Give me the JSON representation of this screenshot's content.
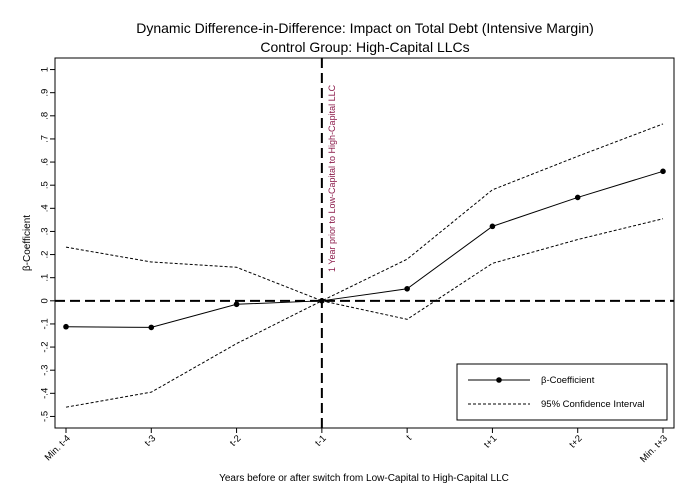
{
  "chart_data": {
    "type": "line",
    "title": "Dynamic Difference-in-Difference: Impact on Total Debt (Intensive Margin)",
    "subtitle": "Control Group: High-Capital LLCs",
    "xlabel": "Years before or after switch from Low-Capital to High-Capital LLC",
    "ylabel": "β-Coefficient",
    "categories": [
      "Min. t-4",
      "t-3",
      "t-2",
      "t-1",
      "t",
      "t+1",
      "t+2",
      "Min. t+3"
    ],
    "yticks": [
      -0.5,
      -0.4,
      -0.3,
      -0.2,
      -0.1,
      0,
      0.1,
      0.2,
      0.3,
      0.4,
      0.5,
      0.6,
      0.7,
      0.8,
      0.9,
      1
    ],
    "ytick_labels": [
      "-.5",
      "-.4",
      "-.3",
      "-.2",
      "-.1",
      "0",
      ".1",
      ".2",
      ".3",
      ".4",
      ".5",
      ".6",
      ".7",
      ".8",
      ".9",
      "1"
    ],
    "ylim": [
      -0.55,
      1.05
    ],
    "series": [
      {
        "name": "β-Coefficient",
        "style": "solid-markers",
        "values": [
          -0.112,
          -0.115,
          -0.015,
          0,
          0.052,
          0.322,
          0.447,
          0.56
        ]
      },
      {
        "name": "95% Confidence Interval",
        "style": "dashed",
        "role": "upper",
        "values": [
          0.232,
          0.168,
          0.145,
          0,
          0.18,
          0.48,
          0.625,
          0.765
        ]
      },
      {
        "name": "95% Confidence Interval",
        "style": "dashed",
        "role": "lower",
        "values": [
          -0.46,
          -0.395,
          -0.185,
          0,
          -0.08,
          0.162,
          0.265,
          0.355
        ]
      }
    ],
    "reference_lines": {
      "horizontal_y": 0,
      "vertical_at": "t-1",
      "vertical_label": "1 Year prior to Low-Capital to High-Capital LLC"
    },
    "legend": {
      "placement": "bottom-right",
      "entries": [
        "β-Coefficient",
        "95% Confidence Interval"
      ]
    },
    "grid": false,
    "colors": {
      "line": "#000000",
      "annotation": "#8b1a4a",
      "background": "#ffffff"
    }
  }
}
